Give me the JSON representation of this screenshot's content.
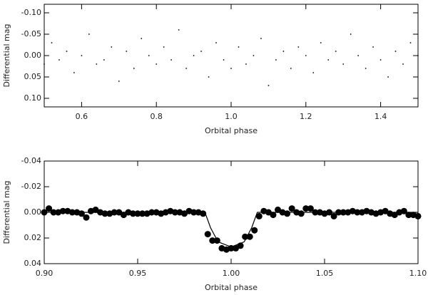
{
  "chart_data": [
    {
      "type": "scatter",
      "xlabel": "Orbital phase",
      "ylabel": "Differential mag",
      "xlim": [
        0.5,
        1.5
      ],
      "ylim": [
        0.12,
        -0.12
      ],
      "xticks": [
        0.6,
        0.8,
        {
          "value": 1.0,
          "label": "1.0"
        },
        1.2,
        1.4
      ],
      "yticks": [
        {
          "value": -0.1,
          "label": "-0.10"
        },
        -0.05,
        {
          "value": 0,
          "label": "0.00"
        },
        0.05,
        {
          "value": 0.1,
          "label": "0.10"
        }
      ],
      "color": "#000000",
      "marker_size": 0.9,
      "x": [
        0.5,
        0.52,
        0.54,
        0.56,
        0.58,
        0.6,
        0.62,
        0.64,
        0.66,
        0.68,
        0.7,
        0.72,
        0.74,
        0.76,
        0.78,
        0.8,
        0.82,
        0.84,
        0.86,
        0.88,
        0.9,
        0.92,
        0.94,
        0.96,
        0.98,
        1.0,
        1.02,
        1.04,
        1.06,
        1.08,
        1.1,
        1.12,
        1.14,
        1.16,
        1.18,
        1.2,
        1.22,
        1.24,
        1.26,
        1.28,
        1.3,
        1.32,
        1.34,
        1.36,
        1.38,
        1.4,
        1.42,
        1.44,
        1.46,
        1.48,
        1.5
      ],
      "values": [
        0.02,
        -0.03,
        0.01,
        -0.01,
        0.04,
        0,
        -0.05,
        0.02,
        0.01,
        -0.02,
        0.06,
        -0.01,
        0.03,
        -0.04,
        0,
        0.02,
        -0.02,
        0.01,
        -0.06,
        0.03,
        0,
        -0.01,
        0.05,
        -0.03,
        0.01,
        0.03,
        -0.02,
        0.02,
        0,
        -0.04,
        0.07,
        0.01,
        -0.01,
        0.03,
        -0.02,
        0,
        0.04,
        -0.03,
        0.01,
        -0.01,
        0.02,
        -0.05,
        0,
        0.03,
        -0.02,
        0.01,
        0.05,
        -0.01,
        0.02,
        -0.03,
        0
      ]
    },
    {
      "type": "scatter",
      "xlabel": "Orbital phase",
      "ylabel": "Differential mag",
      "xlim": [
        0.9,
        1.1
      ],
      "ylim": [
        0.04,
        -0.04
      ],
      "xticks": [
        {
          "value": 0.9,
          "label": "0.90"
        },
        0.95,
        {
          "value": 1,
          "label": "1.00"
        },
        1.05,
        {
          "value": 1.1,
          "label": "1.10"
        }
      ],
      "yticks": [
        -0.04,
        -0.02,
        {
          "value": 0,
          "label": "0.00"
        },
        0.02,
        0.04
      ],
      "color": "#000000",
      "marker_size": 4.5,
      "x": [
        0.9,
        0.9025,
        0.905,
        0.9075,
        0.91,
        0.9125,
        0.915,
        0.9175,
        0.92,
        0.9225,
        0.925,
        0.9275,
        0.93,
        0.9325,
        0.935,
        0.9375,
        0.94,
        0.9425,
        0.945,
        0.9475,
        0.95,
        0.9525,
        0.955,
        0.9575,
        0.96,
        0.9625,
        0.965,
        0.9675,
        0.97,
        0.9725,
        0.975,
        0.9775,
        0.98,
        0.9825,
        0.985,
        0.9875,
        0.99,
        0.9925,
        0.995,
        0.9975,
        1.0,
        1.0025,
        1.005,
        1.0075,
        1.01,
        1.0125,
        1.015,
        1.0175,
        1.02,
        1.0225,
        1.025,
        1.0275,
        1.03,
        1.0325,
        1.035,
        1.0375,
        1.04,
        1.0425,
        1.045,
        1.0475,
        1.05,
        1.0525,
        1.055,
        1.0575,
        1.06,
        1.0625,
        1.065,
        1.0675,
        1.07,
        1.0725,
        1.075,
        1.0775,
        1.08,
        1.0825,
        1.085,
        1.0875,
        1.09,
        1.0925,
        1.095,
        1.0975,
        1.1
      ],
      "values": [
        0,
        -0.003,
        0,
        0,
        -0.001,
        -0.001,
        0,
        0,
        0.001,
        0.004,
        -0.001,
        -0.002,
        0,
        0.001,
        0.001,
        0,
        0,
        0.002,
        0,
        0.001,
        0.001,
        0.001,
        0.001,
        0,
        0,
        0.001,
        0,
        -0.001,
        0,
        0,
        0.001,
        -0.001,
        0,
        0,
        0.001,
        0.017,
        0.022,
        0.022,
        0.028,
        0.029,
        0.028,
        0.028,
        0.026,
        0.019,
        0.019,
        0.014,
        0.003,
        -0.001,
        0,
        0.002,
        -0.002,
        0,
        0.001,
        -0.003,
        0,
        0.001,
        -0.003,
        -0.003,
        0,
        0,
        0.001,
        0,
        0.003,
        0,
        0,
        0,
        -0.001,
        0,
        0,
        -0.001,
        0,
        0.001,
        0,
        -0.001,
        0.001,
        0.002,
        0,
        -0.001,
        0.002,
        0.002,
        0.003
      ],
      "line": {
        "x": [
          0.9,
          0.986,
          0.989,
          0.993,
          1.0,
          1.007,
          1.011,
          1.014,
          1.1
        ],
        "values": [
          0,
          0,
          0.012,
          0.023,
          0.027,
          0.023,
          0.012,
          0,
          0
        ]
      }
    }
  ]
}
